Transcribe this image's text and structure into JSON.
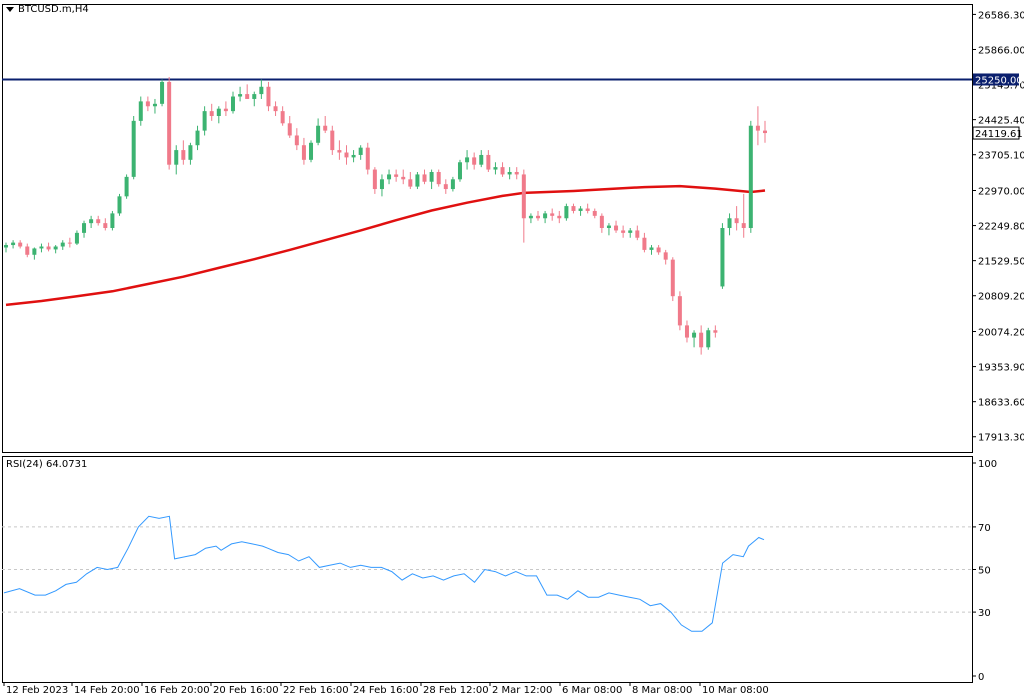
{
  "window": {
    "symbol_title": "BTCUSD.m,H4",
    "rsi_title": "RSI(24) 64.0731"
  },
  "colors": {
    "bull": "#3cb371",
    "bear": "#f07a8a",
    "ma": "#e01010",
    "rsi": "#3399ff",
    "hline": "#0a1f6e",
    "grid": "#c8c8c8"
  },
  "chart_data": [
    {
      "type": "candlestick",
      "title": "BTCUSD.m,H4",
      "price_axis_ticks": [
        "26586.30",
        "25866.00",
        "25145.70",
        "24425.40",
        "23705.10",
        "22970.00",
        "22249.80",
        "21529.50",
        "20809.20",
        "20074.20",
        "19353.90",
        "18633.60",
        "17913.30"
      ],
      "horizontal_line": {
        "value": 25250.0,
        "label": "25250.00"
      },
      "current_price_label": "24119.61",
      "x_ticks": [
        "12 Feb 2023",
        "14 Feb 20:00",
        "16 Feb 20:00",
        "20 Feb 16:00",
        "22 Feb 16:00",
        "24 Feb 16:00",
        "28 Feb 12:00",
        "2 Mar 12:00",
        "6 Mar 08:00",
        "8 Mar 08:00",
        "10 Mar 08:00"
      ],
      "ohlc": [
        [
          21800,
          21900,
          21700,
          21850
        ],
        [
          21850,
          21950,
          21780,
          21900
        ],
        [
          21900,
          21950,
          21780,
          21820
        ],
        [
          21820,
          21880,
          21600,
          21650
        ],
        [
          21650,
          21800,
          21550,
          21780
        ],
        [
          21780,
          21880,
          21700,
          21820
        ],
        [
          21820,
          21900,
          21720,
          21760
        ],
        [
          21760,
          21850,
          21680,
          21820
        ],
        [
          21820,
          21950,
          21750,
          21900
        ],
        [
          21900,
          22000,
          21800,
          21880
        ],
        [
          21880,
          22150,
          21850,
          22100
        ],
        [
          22100,
          22350,
          22000,
          22300
        ],
        [
          22300,
          22450,
          22200,
          22380
        ],
        [
          22380,
          22450,
          22250,
          22300
        ],
        [
          22300,
          22400,
          22150,
          22200
        ],
        [
          22200,
          22550,
          22150,
          22500
        ],
        [
          22500,
          22900,
          22450,
          22850
        ],
        [
          22850,
          23300,
          22800,
          23250
        ],
        [
          23250,
          24500,
          23200,
          24400
        ],
        [
          24400,
          24900,
          24300,
          24800
        ],
        [
          24800,
          24900,
          24600,
          24700
        ],
        [
          24700,
          24850,
          24550,
          24750
        ],
        [
          24750,
          25250,
          24700,
          25200
        ],
        [
          25200,
          25300,
          23400,
          23500
        ],
        [
          23500,
          23900,
          23300,
          23800
        ],
        [
          23800,
          24000,
          23500,
          23600
        ],
        [
          23600,
          23950,
          23500,
          23900
        ],
        [
          23900,
          24300,
          23800,
          24200
        ],
        [
          24200,
          24700,
          24100,
          24600
        ],
        [
          24600,
          24750,
          24400,
          24500
        ],
        [
          24500,
          24700,
          24350,
          24650
        ],
        [
          24650,
          24800,
          24500,
          24600
        ],
        [
          24600,
          25000,
          24550,
          24900
        ],
        [
          24900,
          25100,
          24800,
          24950
        ],
        [
          24950,
          25150,
          24850,
          24850
        ],
        [
          24850,
          25000,
          24700,
          24950
        ],
        [
          24950,
          25250,
          24850,
          25100
        ],
        [
          25100,
          25200,
          24600,
          24700
        ],
        [
          24700,
          24800,
          24500,
          24600
        ],
        [
          24600,
          24700,
          24300,
          24350
        ],
        [
          24350,
          24500,
          24050,
          24100
        ],
        [
          24100,
          24250,
          23800,
          23900
        ],
        [
          23900,
          24050,
          23500,
          23600
        ],
        [
          23600,
          24000,
          23550,
          23950
        ],
        [
          23950,
          24450,
          23900,
          24300
        ],
        [
          24300,
          24500,
          24150,
          24200
        ],
        [
          24200,
          24300,
          23700,
          23800
        ],
        [
          23800,
          24000,
          23600,
          23750
        ],
        [
          23750,
          23900,
          23500,
          23650
        ],
        [
          23650,
          23800,
          23550,
          23700
        ],
        [
          23700,
          23900,
          23600,
          23850
        ],
        [
          23850,
          23950,
          23300,
          23400
        ],
        [
          23400,
          23450,
          22900,
          23000
        ],
        [
          23000,
          23300,
          22850,
          23200
        ],
        [
          23200,
          23400,
          23100,
          23300
        ],
        [
          23300,
          23400,
          23150,
          23250
        ],
        [
          23250,
          23400,
          23100,
          23200
        ],
        [
          23200,
          23350,
          23000,
          23050
        ],
        [
          23050,
          23350,
          23000,
          23300
        ],
        [
          23300,
          23400,
          23100,
          23150
        ],
        [
          23150,
          23400,
          23000,
          23350
        ],
        [
          23350,
          23400,
          23050,
          23100
        ],
        [
          23100,
          23200,
          22900,
          23000
        ],
        [
          23000,
          23250,
          22950,
          23200
        ],
        [
          23200,
          23600,
          23150,
          23550
        ],
        [
          23550,
          23800,
          23400,
          23650
        ],
        [
          23650,
          23750,
          23400,
          23500
        ],
        [
          23500,
          23800,
          23450,
          23700
        ],
        [
          23700,
          23800,
          23350,
          23400
        ],
        [
          23400,
          23550,
          23300,
          23450
        ],
        [
          23450,
          23550,
          23250,
          23300
        ],
        [
          23300,
          23450,
          23200,
          23350
        ],
        [
          23350,
          23450,
          23200,
          23300
        ],
        [
          23300,
          23400,
          21900,
          22400
        ],
        [
          22400,
          22500,
          22300,
          22450
        ],
        [
          22450,
          22550,
          22350,
          22400
        ],
        [
          22400,
          22550,
          22300,
          22500
        ],
        [
          22500,
          22600,
          22350,
          22450
        ],
        [
          22450,
          22550,
          22300,
          22400
        ],
        [
          22400,
          22700,
          22350,
          22650
        ],
        [
          22650,
          22700,
          22500,
          22550
        ],
        [
          22550,
          22650,
          22450,
          22600
        ],
        [
          22600,
          22700,
          22500,
          22550
        ],
        [
          22550,
          22600,
          22400,
          22450
        ],
        [
          22450,
          22500,
          22100,
          22200
        ],
        [
          22200,
          22300,
          22050,
          22250
        ],
        [
          22250,
          22350,
          22100,
          22150
        ],
        [
          22150,
          22250,
          22000,
          22100
        ],
        [
          22100,
          22200,
          22000,
          22150
        ],
        [
          22150,
          22250,
          21950,
          22000
        ],
        [
          22000,
          22100,
          21700,
          21750
        ],
        [
          21750,
          21850,
          21650,
          21800
        ],
        [
          21800,
          21850,
          21650,
          21700
        ],
        [
          21700,
          21750,
          21450,
          21550
        ],
        [
          21550,
          21600,
          20700,
          20800
        ],
        [
          20800,
          20900,
          20100,
          20200
        ],
        [
          20200,
          20300,
          19850,
          19950
        ],
        [
          19950,
          20100,
          19750,
          20050
        ],
        [
          20050,
          20200,
          19600,
          19750
        ],
        [
          19750,
          20150,
          19700,
          20100
        ],
        [
          20100,
          20200,
          19950,
          20050
        ],
        [
          21000,
          22300,
          20950,
          22200
        ],
        [
          22200,
          22500,
          22050,
          22400
        ],
        [
          22400,
          22650,
          22150,
          22300
        ],
        [
          22300,
          22900,
          22000,
          22200
        ],
        [
          22200,
          24400,
          22100,
          24300
        ],
        [
          24300,
          24700,
          23900,
          24200
        ],
        [
          24200,
          24400,
          23950,
          24150
        ]
      ],
      "moving_average": [
        [
          0,
          20620
        ],
        [
          5,
          20700
        ],
        [
          10,
          20800
        ],
        [
          15,
          20900
        ],
        [
          20,
          21050
        ],
        [
          25,
          21200
        ],
        [
          30,
          21380
        ],
        [
          35,
          21560
        ],
        [
          40,
          21750
        ],
        [
          45,
          21950
        ],
        [
          50,
          22150
        ],
        [
          55,
          22360
        ],
        [
          60,
          22560
        ],
        [
          65,
          22720
        ],
        [
          70,
          22860
        ],
        [
          73,
          22920
        ],
        [
          80,
          22960
        ],
        [
          85,
          23000
        ],
        [
          90,
          23040
        ],
        [
          95,
          23060
        ],
        [
          100,
          23010
        ],
        [
          105,
          22940
        ],
        [
          107,
          22970
        ]
      ]
    },
    {
      "type": "line",
      "title": "RSI(24) 64.0731",
      "y_ticks": [
        "100",
        "70",
        "50",
        "30",
        "0"
      ],
      "levels": [
        70,
        50,
        30
      ],
      "ylim": [
        0,
        100
      ],
      "values": [
        [
          0,
          39
        ],
        [
          3,
          41
        ],
        [
          6,
          38
        ],
        [
          8,
          38
        ],
        [
          10,
          40
        ],
        [
          12,
          43
        ],
        [
          14,
          44
        ],
        [
          16,
          48
        ],
        [
          18,
          51
        ],
        [
          20,
          50
        ],
        [
          22,
          51
        ],
        [
          24,
          60
        ],
        [
          26,
          70
        ],
        [
          28,
          75
        ],
        [
          30,
          74
        ],
        [
          32,
          75
        ],
        [
          33,
          55
        ],
        [
          35,
          56
        ],
        [
          37,
          57
        ],
        [
          39,
          60
        ],
        [
          41,
          61
        ],
        [
          42,
          59
        ],
        [
          44,
          62
        ],
        [
          46,
          63
        ],
        [
          48,
          62
        ],
        [
          50,
          61
        ],
        [
          51,
          60
        ],
        [
          53,
          58
        ],
        [
          55,
          57
        ],
        [
          57,
          54
        ],
        [
          59,
          56
        ],
        [
          61,
          51
        ],
        [
          63,
          52
        ],
        [
          65,
          53
        ],
        [
          67,
          51
        ],
        [
          69,
          52
        ],
        [
          71,
          51
        ],
        [
          73,
          51
        ],
        [
          75,
          49
        ],
        [
          77,
          45
        ],
        [
          79,
          48
        ],
        [
          81,
          46
        ],
        [
          83,
          47
        ],
        [
          85,
          45
        ],
        [
          87,
          47
        ],
        [
          89,
          48
        ],
        [
          91,
          44
        ],
        [
          93,
          50
        ],
        [
          95,
          49
        ],
        [
          97,
          47
        ],
        [
          99,
          49
        ],
        [
          101,
          47
        ],
        [
          103,
          47
        ],
        [
          105,
          38
        ],
        [
          107,
          38
        ],
        [
          109,
          36
        ],
        [
          111,
          40
        ],
        [
          113,
          37
        ],
        [
          115,
          37
        ],
        [
          117,
          39
        ],
        [
          119,
          38
        ],
        [
          121,
          37
        ],
        [
          123,
          36
        ],
        [
          125,
          33
        ],
        [
          127,
          34
        ],
        [
          129,
          30
        ],
        [
          131,
          24
        ],
        [
          133,
          21
        ],
        [
          135,
          21
        ],
        [
          137,
          25
        ],
        [
          139,
          53
        ],
        [
          141,
          57
        ],
        [
          143,
          56
        ],
        [
          144,
          61
        ],
        [
          145,
          63
        ],
        [
          146,
          65
        ],
        [
          147,
          64
        ]
      ]
    }
  ]
}
